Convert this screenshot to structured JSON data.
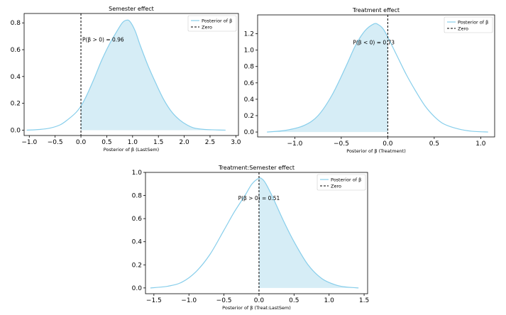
{
  "chart_data": [
    {
      "type": "area",
      "title": "Semester effect",
      "xlabel": "Posterior of β (LastSem)",
      "ylabel": "",
      "xlim": [
        -1.1,
        3.05
      ],
      "ylim": [
        -0.04,
        0.87
      ],
      "xticks": [
        "−1.0",
        "−0.5",
        "0.0",
        "0.5",
        "1.0",
        "1.5",
        "2.0",
        "2.5",
        "3.0"
      ],
      "yticks": [
        "0.0",
        "0.2",
        "0.4",
        "0.6",
        "0.8"
      ],
      "xtick_values": [
        -1.0,
        -0.5,
        0.0,
        0.5,
        1.0,
        1.5,
        2.0,
        2.5,
        3.0
      ],
      "ytick_values": [
        0.0,
        0.2,
        0.4,
        0.6,
        0.8
      ],
      "shade": "right",
      "zero_line": 0.0,
      "annotation": "P(β > 0) = 0.96",
      "annotation_pos": [
        0.43,
        0.66
      ],
      "legend": {
        "placement": "top-right",
        "entries": [
          "Posterior of β",
          "Zero"
        ]
      },
      "curve_color": "#87ceeb",
      "fill_color": "#d6edf6",
      "series": [
        {
          "name": "Posterior of β",
          "x": [
            -1.05,
            -0.8,
            -0.6,
            -0.4,
            -0.25,
            -0.1,
            0.0,
            0.1,
            0.25,
            0.4,
            0.55,
            0.7,
            0.8,
            0.88,
            0.95,
            1.05,
            1.15,
            1.3,
            1.45,
            1.6,
            1.75,
            1.9,
            2.05,
            2.2,
            2.4,
            2.6,
            2.8
          ],
          "y": [
            0.0,
            0.005,
            0.015,
            0.04,
            0.08,
            0.13,
            0.18,
            0.25,
            0.38,
            0.52,
            0.64,
            0.74,
            0.8,
            0.82,
            0.81,
            0.74,
            0.63,
            0.48,
            0.35,
            0.23,
            0.14,
            0.08,
            0.04,
            0.015,
            0.005,
            0.002,
            0.0
          ]
        }
      ]
    },
    {
      "type": "area",
      "title": "Treatment effect",
      "xlabel": "Posterior of β (Treatment)",
      "ylabel": "",
      "xlim": [
        -1.4,
        1.15
      ],
      "ylim": [
        -0.06,
        1.43
      ],
      "xticks": [
        "−1.0",
        "−0.5",
        "0.0",
        "0.5",
        "1.0"
      ],
      "yticks": [
        "0.0",
        "0.2",
        "0.4",
        "0.6",
        "0.8",
        "1.0",
        "1.2"
      ],
      "xtick_values": [
        -1.0,
        -0.5,
        0.0,
        0.5,
        1.0
      ],
      "ytick_values": [
        0.0,
        0.2,
        0.4,
        0.6,
        0.8,
        1.0,
        1.2
      ],
      "shade": "left",
      "zero_line": 0.0,
      "annotation": "P(β < 0) = 0.73",
      "annotation_pos": [
        -0.15,
        1.07
      ],
      "legend": {
        "placement": "top-right",
        "entries": [
          "Posterior of β",
          "Zero"
        ]
      },
      "curve_color": "#87ceeb",
      "fill_color": "#d6edf6",
      "series": [
        {
          "name": "Posterior of β",
          "x": [
            -1.3,
            -1.1,
            -0.9,
            -0.75,
            -0.6,
            -0.45,
            -0.35,
            -0.25,
            -0.15,
            -0.1,
            -0.05,
            0.0,
            0.1,
            0.2,
            0.3,
            0.4,
            0.5,
            0.6,
            0.75,
            0.9,
            1.08
          ],
          "y": [
            0.0,
            0.02,
            0.08,
            0.2,
            0.45,
            0.8,
            1.05,
            1.23,
            1.32,
            1.31,
            1.26,
            1.16,
            0.93,
            0.7,
            0.5,
            0.32,
            0.19,
            0.1,
            0.04,
            0.01,
            0.0
          ]
        }
      ]
    },
    {
      "type": "area",
      "title": "Treatment:Semester effect",
      "xlabel": "Posterior of β (Treat:LastSem)",
      "ylabel": "",
      "xlim": [
        -1.62,
        1.55
      ],
      "ylim": [
        -0.05,
        1.0
      ],
      "xticks": [
        "−1.5",
        "−1.0",
        "−0.5",
        "0.0",
        "0.5",
        "1.0",
        "1.5"
      ],
      "yticks": [
        "0.0",
        "0.2",
        "0.4",
        "0.6",
        "0.8",
        "1.0"
      ],
      "xtick_values": [
        -1.5,
        -1.0,
        -0.5,
        0.0,
        0.5,
        1.0,
        1.5
      ],
      "ytick_values": [
        0.0,
        0.2,
        0.4,
        0.6,
        0.8,
        1.0
      ],
      "shade": "right",
      "zero_line": 0.0,
      "annotation": "P(β > 0) = 0.51",
      "annotation_pos": [
        0.0,
        0.76
      ],
      "legend": {
        "placement": "top-right",
        "entries": [
          "Posterior of β",
          "Zero"
        ]
      },
      "curve_color": "#87ceeb",
      "fill_color": "#d6edf6",
      "series": [
        {
          "name": "Posterior of β",
          "x": [
            -1.55,
            -1.3,
            -1.1,
            -0.9,
            -0.7,
            -0.5,
            -0.35,
            -0.2,
            -0.1,
            0.0,
            0.05,
            0.1,
            0.2,
            0.35,
            0.5,
            0.7,
            0.9,
            1.1,
            1.25,
            1.42
          ],
          "y": [
            0.0,
            0.015,
            0.05,
            0.14,
            0.29,
            0.5,
            0.66,
            0.8,
            0.9,
            0.95,
            0.94,
            0.9,
            0.78,
            0.58,
            0.4,
            0.2,
            0.08,
            0.025,
            0.008,
            0.0
          ]
        }
      ]
    }
  ]
}
